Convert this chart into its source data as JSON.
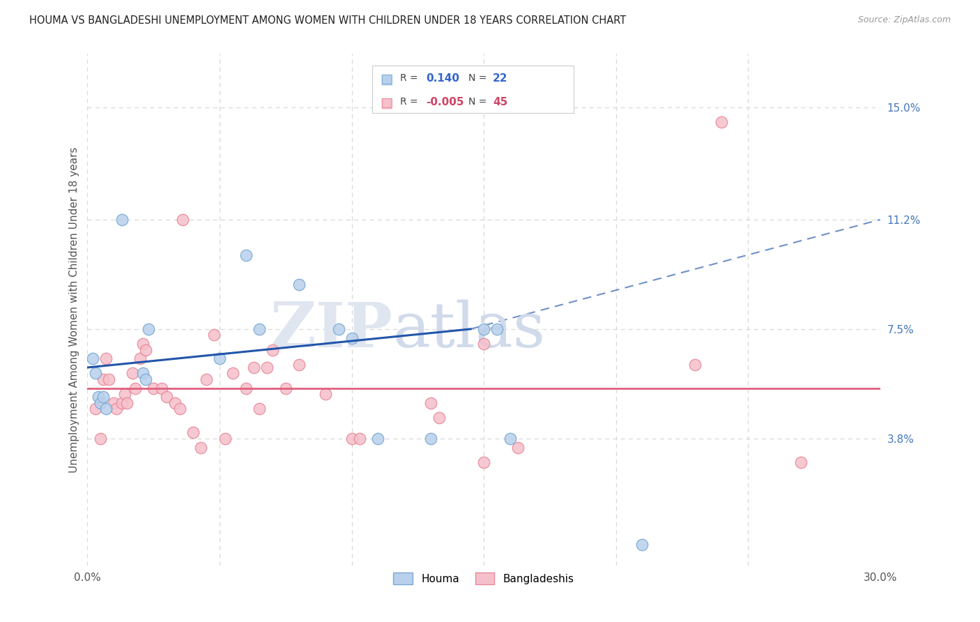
{
  "title": "HOUMA VS BANGLADESHI UNEMPLOYMENT AMONG WOMEN WITH CHILDREN UNDER 18 YEARS CORRELATION CHART",
  "source": "Source: ZipAtlas.com",
  "ylabel": "Unemployment Among Women with Children Under 18 years",
  "xlim": [
    0.0,
    0.3
  ],
  "ylim": [
    -0.005,
    0.168
  ],
  "yticks": [
    0.038,
    0.075,
    0.112,
    0.15
  ],
  "ytick_labels": [
    "3.8%",
    "7.5%",
    "11.2%",
    "15.0%"
  ],
  "xticks": [
    0.0,
    0.05,
    0.1,
    0.15,
    0.2,
    0.25,
    0.3
  ],
  "xtick_labels": [
    "0.0%",
    "",
    "",
    "",
    "",
    "",
    "30.0%"
  ],
  "background_color": "#ffffff",
  "grid_color": "#d8d8d8",
  "houma_fill": "#b8d0eb",
  "bangladeshi_fill": "#f5c0cb",
  "houma_edge": "#7aa8d4",
  "bangladeshi_edge": "#e88898",
  "trend_houma": "#2255aa",
  "trend_bangladeshi": "#e06080",
  "houma_x": [
    0.002,
    0.013,
    0.003,
    0.004,
    0.005,
    0.006,
    0.007,
    0.021,
    0.022,
    0.023,
    0.05,
    0.06,
    0.065,
    0.08,
    0.095,
    0.1,
    0.11,
    0.13,
    0.15,
    0.155,
    0.16,
    0.21
  ],
  "houma_y": [
    0.065,
    0.112,
    0.06,
    0.052,
    0.05,
    0.052,
    0.048,
    0.06,
    0.058,
    0.075,
    0.065,
    0.1,
    0.075,
    0.09,
    0.075,
    0.072,
    0.038,
    0.038,
    0.075,
    0.075,
    0.038,
    0.002
  ],
  "bangladeshi_x": [
    0.003,
    0.005,
    0.006,
    0.007,
    0.008,
    0.01,
    0.011,
    0.013,
    0.014,
    0.015,
    0.017,
    0.018,
    0.02,
    0.021,
    0.022,
    0.025,
    0.028,
    0.03,
    0.033,
    0.035,
    0.036,
    0.04,
    0.043,
    0.045,
    0.048,
    0.052,
    0.055,
    0.06,
    0.063,
    0.065,
    0.068,
    0.07,
    0.075,
    0.08,
    0.09,
    0.1,
    0.103,
    0.13,
    0.133,
    0.15,
    0.163,
    0.23,
    0.24,
    0.27,
    0.15
  ],
  "bangladeshi_y": [
    0.048,
    0.038,
    0.058,
    0.065,
    0.058,
    0.05,
    0.048,
    0.05,
    0.053,
    0.05,
    0.06,
    0.055,
    0.065,
    0.07,
    0.068,
    0.055,
    0.055,
    0.052,
    0.05,
    0.048,
    0.112,
    0.04,
    0.035,
    0.058,
    0.073,
    0.038,
    0.06,
    0.055,
    0.062,
    0.048,
    0.062,
    0.068,
    0.055,
    0.063,
    0.053,
    0.038,
    0.038,
    0.05,
    0.045,
    0.03,
    0.035,
    0.063,
    0.145,
    0.03,
    0.07
  ],
  "trend_houma_x0": 0.0,
  "trend_houma_y0": 0.062,
  "trend_houma_x1": 0.145,
  "trend_houma_y1": 0.075,
  "trend_dash_x0": 0.145,
  "trend_dash_y0": 0.075,
  "trend_dash_x1": 0.3,
  "trend_dash_y1": 0.112,
  "trend_bangladeshi_y": 0.055
}
